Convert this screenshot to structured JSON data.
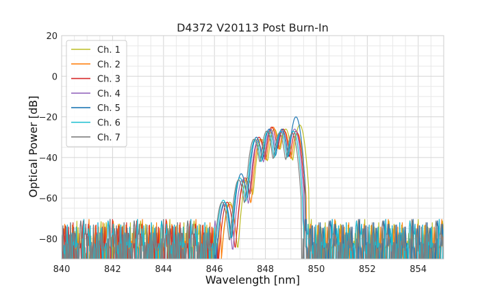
{
  "chart_data": {
    "type": "line",
    "title": "D4372 V20113 Post Burn-In",
    "xlabel": "Wavelength [nm]",
    "ylabel": "Optical Power [dB]",
    "xlim": [
      840,
      855
    ],
    "ylim": [
      -90,
      20
    ],
    "xticks": [
      "840",
      "842",
      "844",
      "846",
      "848",
      "850",
      "852",
      "854"
    ],
    "yticks": [
      "20",
      "0",
      "−20",
      "−40",
      "−60",
      "−80"
    ],
    "grid": true,
    "legend_position": "top-left",
    "noise_floor_db": -72,
    "series": [
      {
        "name": "Ch. 1",
        "color": "#bcbd22",
        "peaks": [
          [
            846.6,
            -62
          ],
          [
            847.3,
            -50
          ],
          [
            847.85,
            -31
          ],
          [
            848.35,
            -26
          ],
          [
            848.8,
            -26
          ],
          [
            849.35,
            -24
          ]
        ]
      },
      {
        "name": "Ch. 2",
        "color": "#ff7f0e",
        "peaks": [
          [
            846.6,
            -63
          ],
          [
            847.2,
            -51
          ],
          [
            847.8,
            -31
          ],
          [
            848.3,
            -25
          ],
          [
            848.75,
            -27
          ],
          [
            849.25,
            -28
          ]
        ]
      },
      {
        "name": "Ch. 3",
        "color": "#d62728",
        "peaks": [
          [
            846.5,
            -62
          ],
          [
            847.2,
            -50
          ],
          [
            847.75,
            -30
          ],
          [
            848.25,
            -25
          ],
          [
            848.7,
            -26
          ],
          [
            849.2,
            -27
          ]
        ]
      },
      {
        "name": "Ch. 4",
        "color": "#9467bd",
        "peaks": [
          [
            846.4,
            -63
          ],
          [
            847.1,
            -51
          ],
          [
            847.7,
            -32
          ],
          [
            848.2,
            -26
          ],
          [
            848.65,
            -27
          ],
          [
            849.15,
            -26
          ]
        ]
      },
      {
        "name": "Ch. 5",
        "color": "#1f77b4",
        "peaks": [
          [
            846.4,
            -62
          ],
          [
            847.05,
            -48
          ],
          [
            847.65,
            -30
          ],
          [
            848.15,
            -26
          ],
          [
            848.65,
            -26
          ],
          [
            849.2,
            -20
          ]
        ]
      },
      {
        "name": "Ch. 6",
        "color": "#17becf",
        "peaks": [
          [
            846.35,
            -61
          ],
          [
            847.0,
            -50
          ],
          [
            847.6,
            -31
          ],
          [
            848.1,
            -27
          ],
          [
            848.6,
            -27
          ],
          [
            849.1,
            -27
          ]
        ]
      },
      {
        "name": "Ch. 7",
        "color": "#7f7f7f",
        "peaks": [
          [
            846.3,
            -62
          ],
          [
            846.95,
            -51
          ],
          [
            847.55,
            -31
          ],
          [
            848.05,
            -27
          ],
          [
            848.55,
            -28
          ],
          [
            849.05,
            -28
          ]
        ]
      }
    ]
  }
}
